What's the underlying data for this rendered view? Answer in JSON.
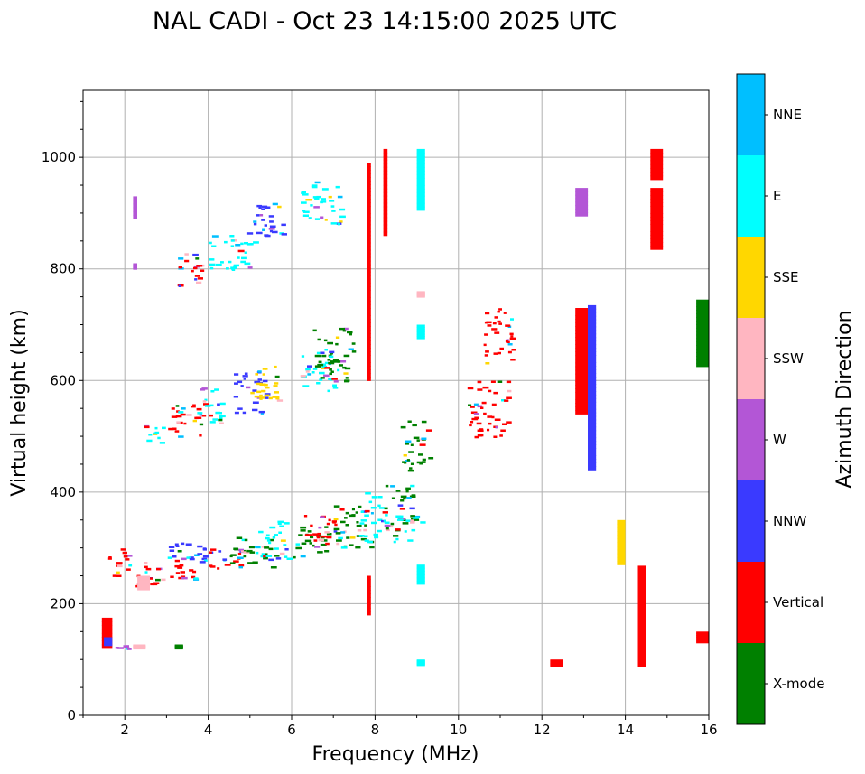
{
  "chart_data": {
    "type": "scatter",
    "title": "NAL CADI - Oct 23 14:15:00 2025 UTC",
    "xlabel": "Frequency (MHz)",
    "ylabel": "Virtual height (km)",
    "xlim": [
      1,
      16
    ],
    "ylim": [
      0,
      1120
    ],
    "xticks": [
      2,
      4,
      6,
      8,
      10,
      12,
      14,
      16
    ],
    "yticks": [
      0,
      200,
      400,
      600,
      800,
      1000
    ],
    "grid": true,
    "colorbar": {
      "label": "Azimuth Direction",
      "categories": [
        {
          "name": "X-mode",
          "color": "#008000"
        },
        {
          "name": "Vertical",
          "color": "#ff0000"
        },
        {
          "name": "NNW",
          "color": "#3a3aff"
        },
        {
          "name": "W",
          "color": "#b356d6"
        },
        {
          "name": "SSW",
          "color": "#ffb6c1"
        },
        {
          "name": "SSE",
          "color": "#ffd700"
        },
        {
          "name": "E",
          "color": "#00ffff"
        },
        {
          "name": "NNE",
          "color": "#00bfff"
        }
      ]
    },
    "trace_notes": "Ionogram echoes sampled along visible traces; each segment gives frequency range (MHz), virtual height range (km) and dominant azimuth category.",
    "segments": [
      {
        "f": [
          1.45,
          1.7
        ],
        "h": [
          120,
          175
        ],
        "dir": "Vertical"
      },
      {
        "f": [
          1.5,
          1.7
        ],
        "h": [
          125,
          140
        ],
        "dir": "NNW"
      },
      {
        "f": [
          1.7,
          2.2
        ],
        "h": [
          120,
          127
        ],
        "dir": "W"
      },
      {
        "f": [
          2.2,
          2.5
        ],
        "h": [
          120,
          127
        ],
        "dir": "SSW"
      },
      {
        "f": [
          3.2,
          3.4
        ],
        "h": [
          120,
          127
        ],
        "dir": "X-mode"
      },
      {
        "f": [
          1.6,
          2.2
        ],
        "h": [
          240,
          300
        ],
        "dir": "Vertical"
      },
      {
        "f": [
          2.2,
          3.0
        ],
        "h": [
          230,
          280
        ],
        "dir": "Vertical"
      },
      {
        "f": [
          2.3,
          2.6
        ],
        "h": [
          225,
          250
        ],
        "dir": "SSW"
      },
      {
        "f": [
          3.0,
          4.0
        ],
        "h": [
          245,
          290
        ],
        "dir": "Vertical"
      },
      {
        "f": [
          3.0,
          4.2
        ],
        "h": [
          270,
          310
        ],
        "dir": "NNW"
      },
      {
        "f": [
          4.0,
          5.0
        ],
        "h": [
          255,
          300
        ],
        "dir": "Vertical"
      },
      {
        "f": [
          4.5,
          5.7
        ],
        "h": [
          265,
          320
        ],
        "dir": "X-mode"
      },
      {
        "f": [
          5.0,
          6.0
        ],
        "h": [
          280,
          350
        ],
        "dir": "E"
      },
      {
        "f": [
          6.0,
          7.0
        ],
        "h": [
          280,
          340
        ],
        "dir": "X-mode"
      },
      {
        "f": [
          6.3,
          7.2
        ],
        "h": [
          300,
          360
        ],
        "dir": "Vertical"
      },
      {
        "f": [
          7.0,
          8.0
        ],
        "h": [
          300,
          380
        ],
        "dir": "X-mode"
      },
      {
        "f": [
          7.6,
          8.4
        ],
        "h": [
          310,
          400
        ],
        "dir": "E"
      },
      {
        "f": [
          8.2,
          9.0
        ],
        "h": [
          330,
          420
        ],
        "dir": "X-mode"
      },
      {
        "f": [
          8.4,
          9.2
        ],
        "h": [
          310,
          360
        ],
        "dir": "E"
      },
      {
        "f": [
          9.0,
          9.2
        ],
        "h": [
          235,
          270
        ],
        "dir": "E"
      },
      {
        "f": [
          9.0,
          9.2
        ],
        "h": [
          90,
          100
        ],
        "dir": "E"
      },
      {
        "f": [
          8.6,
          9.4
        ],
        "h": [
          440,
          530
        ],
        "dir": "X-mode"
      },
      {
        "f": [
          2.3,
          3.0
        ],
        "h": [
          490,
          530
        ],
        "dir": "E"
      },
      {
        "f": [
          3.0,
          4.0
        ],
        "h": [
          500,
          560
        ],
        "dir": "Vertical"
      },
      {
        "f": [
          3.6,
          4.4
        ],
        "h": [
          520,
          590
        ],
        "dir": "E"
      },
      {
        "f": [
          4.6,
          5.5
        ],
        "h": [
          540,
          620
        ],
        "dir": "NNW"
      },
      {
        "f": [
          5.0,
          5.8
        ],
        "h": [
          560,
          630
        ],
        "dir": "SSE"
      },
      {
        "f": [
          6.2,
          7.1
        ],
        "h": [
          580,
          660
        ],
        "dir": "E"
      },
      {
        "f": [
          6.5,
          7.6
        ],
        "h": [
          600,
          700
        ],
        "dir": "X-mode"
      },
      {
        "f": [
          3.2,
          4.0
        ],
        "h": [
          770,
          830
        ],
        "dir": "Vertical"
      },
      {
        "f": [
          4.0,
          5.2
        ],
        "h": [
          800,
          870
        ],
        "dir": "E"
      },
      {
        "f": [
          4.9,
          6.0
        ],
        "h": [
          860,
          920
        ],
        "dir": "NNW"
      },
      {
        "f": [
          6.2,
          7.3
        ],
        "h": [
          880,
          960
        ],
        "dir": "E"
      },
      {
        "f": [
          2.2,
          2.3
        ],
        "h": [
          890,
          930
        ],
        "dir": "W"
      },
      {
        "f": [
          2.2,
          2.3
        ],
        "h": [
          800,
          810
        ],
        "dir": "W"
      },
      {
        "f": [
          7.8,
          7.9
        ],
        "h": [
          180,
          250
        ],
        "dir": "Vertical"
      },
      {
        "f": [
          7.8,
          7.9
        ],
        "h": [
          600,
          990
        ],
        "dir": "Vertical"
      },
      {
        "f": [
          8.2,
          8.3
        ],
        "h": [
          860,
          1015
        ],
        "dir": "Vertical"
      },
      {
        "f": [
          9.0,
          9.2
        ],
        "h": [
          905,
          1015
        ],
        "dir": "E"
      },
      {
        "f": [
          9.0,
          9.2
        ],
        "h": [
          675,
          700
        ],
        "dir": "E"
      },
      {
        "f": [
          9.0,
          9.2
        ],
        "h": [
          750,
          760
        ],
        "dir": "SSW"
      },
      {
        "f": [
          10.2,
          11.3
        ],
        "h": [
          500,
          600
        ],
        "dir": "Vertical"
      },
      {
        "f": [
          10.6,
          11.4
        ],
        "h": [
          630,
          735
        ],
        "dir": "Vertical"
      },
      {
        "f": [
          12.2,
          12.5
        ],
        "h": [
          88,
          100
        ],
        "dir": "Vertical"
      },
      {
        "f": [
          12.8,
          13.1
        ],
        "h": [
          540,
          730
        ],
        "dir": "Vertical"
      },
      {
        "f": [
          13.1,
          13.3
        ],
        "h": [
          440,
          735
        ],
        "dir": "NNW"
      },
      {
        "f": [
          13.8,
          14.0
        ],
        "h": [
          270,
          350
        ],
        "dir": "SSE"
      },
      {
        "f": [
          14.3,
          14.5
        ],
        "h": [
          88,
          268
        ],
        "dir": "Vertical"
      },
      {
        "f": [
          14.6,
          14.9
        ],
        "h": [
          835,
          945
        ],
        "dir": "Vertical"
      },
      {
        "f": [
          14.6,
          14.9
        ],
        "h": [
          960,
          1015
        ],
        "dir": "Vertical"
      },
      {
        "f": [
          12.8,
          13.1
        ],
        "h": [
          895,
          945
        ],
        "dir": "W"
      },
      {
        "f": [
          15.7,
          16.0
        ],
        "h": [
          625,
          745
        ],
        "dir": "X-mode"
      },
      {
        "f": [
          15.7,
          16.0
        ],
        "h": [
          130,
          150
        ],
        "dir": "Vertical"
      }
    ]
  }
}
